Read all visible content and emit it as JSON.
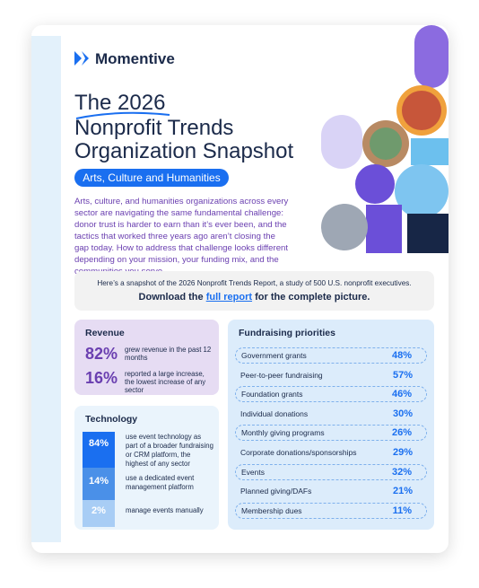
{
  "logo": "Momentive",
  "title": {
    "line1": "The 2026",
    "line2": "Nonprofit Trends",
    "line3": "Organization Snapshot"
  },
  "tag": "Arts, Culture and Humanities",
  "intro": "Arts, culture, and humanities organizations across every sector are navigating the same fundamental challenge: donor trust is harder to earn than it’s ever been, and the tactics that worked three years ago aren’t closing the gap today. How to address that challenge looks different depending on your mission, your funding mix, and the communities you serve.",
  "snapshot": {
    "line1": "Here’s a snapshot of the 2026 Nonprofit Trends Report, a study of 500 U.S. nonprofit executives.",
    "download_before": "Download the",
    "download_link": "full report",
    "download_after": "for the complete picture."
  },
  "revenue": {
    "title": "Revenue",
    "items": [
      {
        "stat": "82%",
        "text": "grew revenue in the past 12 months"
      },
      {
        "stat": "16%",
        "text": "reported a large increase, the lowest increase of any sector"
      }
    ]
  },
  "technology": {
    "title": "Technology",
    "items": [
      {
        "stat": "84%",
        "text": "use event technology as part of a broader fundraising or CRM platform, the highest of any sector"
      },
      {
        "stat": "14%",
        "text": "use a dedicated event management platform"
      },
      {
        "stat": "2%",
        "text": "manage events manually"
      }
    ]
  },
  "fundraising": {
    "title": "Fundraising priorities",
    "rows": [
      [
        "Government grants",
        "48%"
      ],
      [
        "Peer-to-peer fundraising",
        "57%"
      ],
      [
        "Foundation grants",
        "46%"
      ],
      [
        "Individual donations",
        "30%"
      ],
      [
        "Monthly giving programs",
        "26%"
      ],
      [
        "Corporate donations/sponsorships",
        "29%"
      ],
      [
        "Events",
        "32%"
      ],
      [
        "Planned giving/DAFs",
        "21%"
      ],
      [
        "Membership dues",
        "11%"
      ]
    ]
  }
}
